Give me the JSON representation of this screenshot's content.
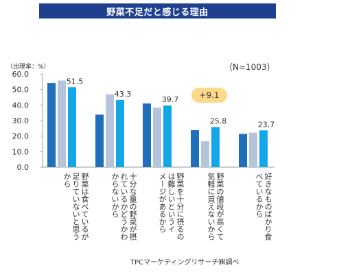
{
  "header": {
    "title": "野菜不足だと感じる理由"
  },
  "annotations": {
    "unit": "（出現率：%）",
    "sample": "（N=1003）",
    "badge": "+9.1"
  },
  "source": "TPCマーケティングリサーチ㈱調べ",
  "colors": {
    "series1": "#1f6fbd",
    "series2": "#b4c4dc",
    "series3": "#13a7e8",
    "title_bg": "#1f3f8f",
    "badge_bg": "#fdd98a"
  },
  "chart_data": {
    "type": "bar",
    "title": "野菜不足だと感じる理由",
    "ylabel": "（出現率：%）",
    "ylim": [
      0,
      60
    ],
    "yticks": [
      "0.0",
      "10.0",
      "20.0",
      "30.0",
      "40.0",
      "50.0",
      "60.0"
    ],
    "grid": false,
    "categories": [
      "野菜は食べているが\n足りていないと思う\nから",
      "十分な量の野菜が摂\nれているかどうかわ\nからないから",
      "野菜を十分に摂るの\nは難しいというイ\nメージがあるから",
      "野菜の値段が高くて\n気軽に買えないから",
      "好きなものばかり食\nべているから"
    ],
    "series": [
      {
        "values": [
          54.2,
          33.8,
          41.0,
          23.8,
          21.4
        ]
      },
      {
        "values": [
          55.8,
          46.8,
          38.4,
          16.7,
          22.2
        ]
      },
      {
        "values": [
          51.5,
          43.3,
          39.7,
          25.8,
          23.7
        ]
      }
    ],
    "data_labels": [
      "51.5",
      "43.3",
      "39.7",
      "25.8",
      "23.7"
    ]
  }
}
